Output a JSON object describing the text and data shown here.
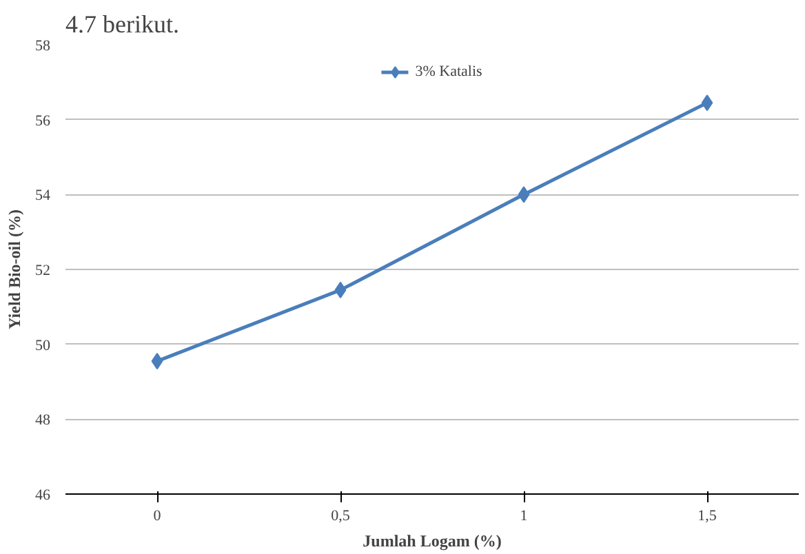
{
  "chart_data": {
    "type": "line",
    "xlabel": "Jumlah Logam (%)",
    "ylabel": "Yield Bio-oil (%)",
    "categories": [
      "0",
      "0,5",
      "1",
      "1,5"
    ],
    "series": [
      {
        "name": "3% Katalis",
        "color": "#4a7ebb",
        "values": [
          49.55,
          51.45,
          54.0,
          56.45
        ]
      }
    ],
    "ylim": [
      46,
      58
    ],
    "yticks": [
      46,
      48,
      50,
      52,
      54,
      56,
      58
    ],
    "grid": "y",
    "legend": "top",
    "marker": "diamond",
    "line_style": "solid",
    "annotations": [
      "4.7 berikut."
    ]
  }
}
